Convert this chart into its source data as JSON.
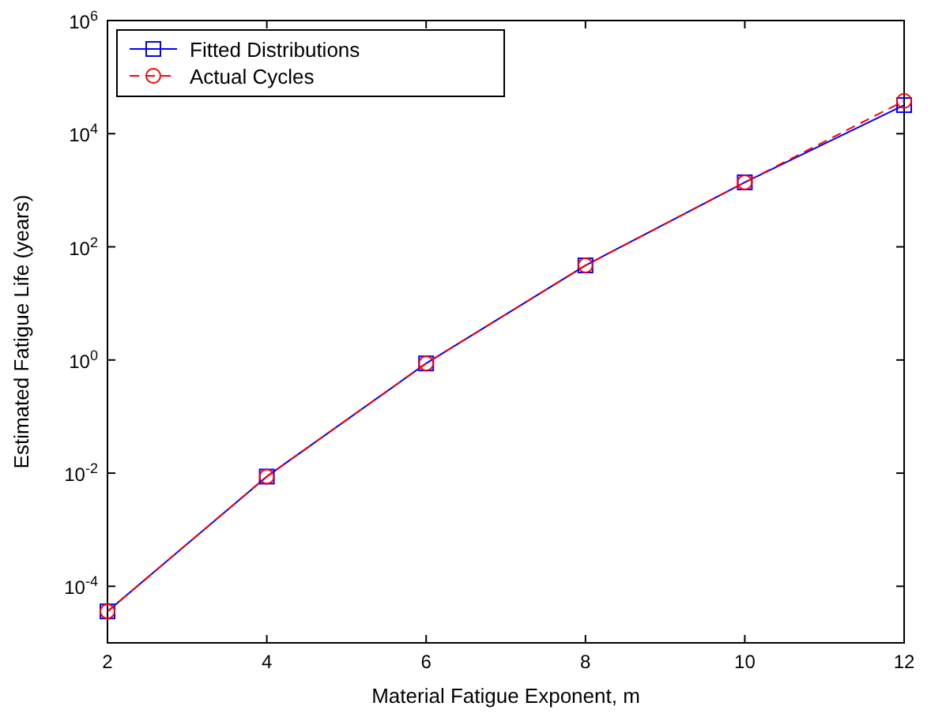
{
  "chart_data": {
    "type": "line",
    "xlabel": "Material Fatigue Exponent, m",
    "ylabel": "Estimated Fatigue Life (years)",
    "log": "y",
    "xlim": [
      2,
      12
    ],
    "xticks": [
      2,
      4,
      6,
      8,
      10,
      12
    ],
    "ylim": [
      1e-05,
      1000000
    ],
    "yticks": [
      {
        "value": 0.0001,
        "label": "10$^{-4}$"
      },
      {
        "value": 0.01,
        "label": "10$^{-2}$"
      },
      {
        "value": 1,
        "label": "10$^{0}$"
      },
      {
        "value": 100,
        "label": "10$^{2}$"
      },
      {
        "value": 10000,
        "label": "10$^{4}$"
      },
      {
        "value": 1000000,
        "label": "10$^{6}$"
      }
    ],
    "x": [
      2,
      4,
      6,
      8,
      10,
      12
    ],
    "legend": "top left",
    "grid": false,
    "series": [
      {
        "name": "Fitted Distributions",
        "color": "#0000ff",
        "marker": "square",
        "values": [
          3.6e-05,
          0.0087,
          0.87,
          47,
          1380,
          32000
        ]
      },
      {
        "name": "Actual Cycles",
        "color": "#ff0000",
        "marker": "circle",
        "line_style": "dashed",
        "values": [
          3.6e-05,
          0.0087,
          0.87,
          47,
          1380,
          38000
        ]
      }
    ]
  }
}
